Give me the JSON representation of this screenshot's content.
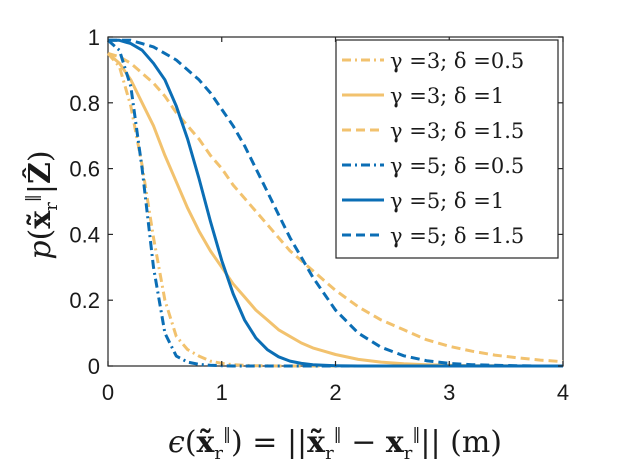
{
  "chart_data": {
    "type": "line",
    "title": "",
    "xlabel": "ϵ(x̃ᵣ‖) = ||x̃ᵣ‖ − xᵣ‖|| (m)",
    "ylabel": "p(x̃ᵣ‖|Ẑ)",
    "xlim": [
      0,
      4
    ],
    "ylim": [
      0,
      1
    ],
    "xticks": [
      0,
      1,
      2,
      3,
      4
    ],
    "yticks": [
      0,
      0.2,
      0.4,
      0.6,
      0.8,
      1
    ],
    "xtick_labels": [
      "0",
      "1",
      "2",
      "3",
      "4"
    ],
    "ytick_labels": [
      "0",
      "0.2",
      "0.4",
      "0.6",
      "0.8",
      "1"
    ],
    "grid": false,
    "legend_position": "top-right",
    "x": [
      0,
      0.1,
      0.2,
      0.3,
      0.4,
      0.5,
      0.6,
      0.7,
      0.8,
      0.9,
      1.0,
      1.1,
      1.2,
      1.3,
      1.4,
      1.5,
      1.6,
      1.7,
      1.8,
      1.9,
      2.0,
      2.2,
      2.4,
      2.6,
      2.8,
      3.0,
      3.2,
      3.4,
      3.6,
      3.8,
      4.0
    ],
    "series": [
      {
        "name": "γ =3; δ =0.5",
        "color": "#f2c26e",
        "dash": "dashdot",
        "values": [
          0.95,
          0.91,
          0.79,
          0.61,
          0.39,
          0.2,
          0.09,
          0.05,
          0.03,
          0.015,
          0.008,
          0.004,
          0.002,
          0.001,
          0.0005,
          0,
          0,
          0,
          0,
          0,
          0,
          0,
          0,
          0,
          0,
          0,
          0,
          0,
          0,
          0,
          0
        ]
      },
      {
        "name": "γ =3; δ =1",
        "color": "#f2c26e",
        "dash": "solid",
        "values": [
          0.95,
          0.92,
          0.87,
          0.8,
          0.73,
          0.64,
          0.56,
          0.48,
          0.41,
          0.35,
          0.3,
          0.25,
          0.21,
          0.17,
          0.14,
          0.11,
          0.09,
          0.07,
          0.055,
          0.045,
          0.035,
          0.02,
          0.012,
          0.007,
          0.004,
          0.002,
          0.001,
          0.0005,
          0,
          0,
          0
        ]
      },
      {
        "name": "γ =3; δ =1.5",
        "color": "#f2c26e",
        "dash": "dashed",
        "values": [
          0.95,
          0.94,
          0.92,
          0.89,
          0.86,
          0.82,
          0.77,
          0.73,
          0.69,
          0.64,
          0.6,
          0.55,
          0.51,
          0.47,
          0.43,
          0.39,
          0.35,
          0.32,
          0.29,
          0.26,
          0.23,
          0.18,
          0.14,
          0.11,
          0.08,
          0.06,
          0.045,
          0.033,
          0.025,
          0.018,
          0.013
        ]
      },
      {
        "name": "γ =5; δ =0.5",
        "color": "#0b6eb5",
        "dash": "dashdot",
        "values": [
          0.99,
          0.96,
          0.85,
          0.6,
          0.3,
          0.1,
          0.03,
          0.012,
          0.005,
          0.002,
          0.001,
          0,
          0,
          0,
          0,
          0,
          0,
          0,
          0,
          0,
          0,
          0,
          0,
          0,
          0,
          0,
          0,
          0,
          0,
          0,
          0
        ]
      },
      {
        "name": "γ =5; δ =1",
        "color": "#0b6eb5",
        "dash": "solid",
        "values": [
          0.99,
          0.99,
          0.98,
          0.96,
          0.92,
          0.87,
          0.79,
          0.69,
          0.57,
          0.44,
          0.32,
          0.22,
          0.14,
          0.085,
          0.05,
          0.028,
          0.015,
          0.008,
          0.004,
          0.002,
          0.001,
          0,
          0,
          0,
          0,
          0,
          0,
          0,
          0,
          0,
          0
        ]
      },
      {
        "name": "γ =5; δ =1.5",
        "color": "#0b6eb5",
        "dash": "dashed",
        "values": [
          0.99,
          0.99,
          0.99,
          0.98,
          0.97,
          0.95,
          0.93,
          0.9,
          0.87,
          0.83,
          0.78,
          0.73,
          0.67,
          0.6,
          0.53,
          0.46,
          0.39,
          0.33,
          0.27,
          0.22,
          0.17,
          0.1,
          0.057,
          0.031,
          0.016,
          0.008,
          0.004,
          0.002,
          0.001,
          0,
          0
        ]
      }
    ]
  }
}
